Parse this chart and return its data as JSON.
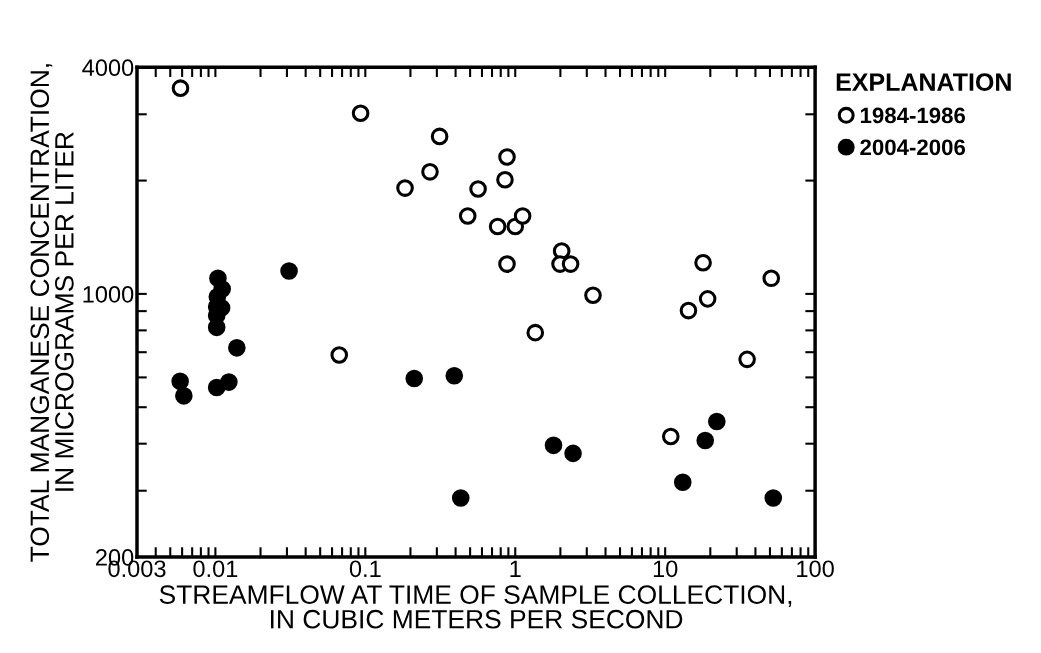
{
  "chart_data": {
    "type": "scatter",
    "xlabel": "STREAMFLOW AT TIME OF SAMPLE COLLECTION,\nIN CUBIC METERS PER SECOND",
    "ylabel": "TOTAL MANGANESE CONCENTRATION,\nIN MICROGRAMS PER LITER",
    "legend_title": "EXPLANATION",
    "legend": "top right",
    "log": "xy",
    "grid": false,
    "marker": "circle",
    "xlim": [
      0.003,
      100
    ],
    "ylim": [
      200,
      4000
    ],
    "xticks": [
      0.003,
      {
        "value": 0.004,
        "label": null
      },
      {
        "value": 0.005,
        "label": null
      },
      {
        "value": 0.006,
        "label": null
      },
      {
        "value": 0.007,
        "label": null
      },
      {
        "value": 0.008,
        "label": null
      },
      {
        "value": 0.009,
        "label": null
      },
      0.01,
      {
        "value": 0.02,
        "label": null
      },
      {
        "value": 0.03,
        "label": null
      },
      {
        "value": 0.04,
        "label": null
      },
      {
        "value": 0.05,
        "label": null
      },
      {
        "value": 0.06,
        "label": null
      },
      {
        "value": 0.07,
        "label": null
      },
      {
        "value": 0.08,
        "label": null
      },
      {
        "value": 0.09,
        "label": null
      },
      0.1,
      {
        "value": 0.2,
        "label": null
      },
      {
        "value": 0.3,
        "label": null
      },
      {
        "value": 0.4,
        "label": null
      },
      {
        "value": 0.5,
        "label": null
      },
      {
        "value": 0.6,
        "label": null
      },
      {
        "value": 0.7,
        "label": null
      },
      {
        "value": 0.8,
        "label": null
      },
      {
        "value": 0.9,
        "label": null
      },
      1,
      {
        "value": 2,
        "label": null
      },
      {
        "value": 3,
        "label": null
      },
      {
        "value": 4,
        "label": null
      },
      {
        "value": 5,
        "label": null
      },
      {
        "value": 6,
        "label": null
      },
      {
        "value": 7,
        "label": null
      },
      {
        "value": 8,
        "label": null
      },
      {
        "value": 9,
        "label": null
      },
      10,
      {
        "value": 20,
        "label": null
      },
      {
        "value": 30,
        "label": null
      },
      {
        "value": 40,
        "label": null
      },
      {
        "value": 50,
        "label": null
      },
      {
        "value": 60,
        "label": null
      },
      {
        "value": 70,
        "label": null
      },
      {
        "value": 80,
        "label": null
      },
      {
        "value": 90,
        "label": null
      },
      100
    ],
    "yticks": [
      200,
      {
        "value": 300,
        "label": null
      },
      {
        "value": 400,
        "label": null
      },
      {
        "value": 500,
        "label": null
      },
      {
        "value": 600,
        "label": null
      },
      {
        "value": 700,
        "label": null
      },
      {
        "value": 800,
        "label": null
      },
      {
        "value": 900,
        "label": null
      },
      1000,
      {
        "value": 2000,
        "label": null
      },
      {
        "value": 3000,
        "label": null
      },
      4000
    ],
    "series": [
      {
        "name": "1984-1986",
        "color": "#ffffff",
        "x": [
          0.00585,
          0.093,
          0.313,
          0.27,
          0.184,
          0.482,
          0.067,
          0.881,
          0.854,
          0.565,
          0.763,
          1.0,
          1.12,
          2.04,
          1.99,
          2.34,
          0.881,
          3.3,
          1.36,
          17.9,
          19.2,
          14.3,
          51,
          35.2,
          10.9
        ],
        "values": [
          3520,
          3020,
          2620,
          2110,
          1910,
          1610,
          688,
          2310,
          2010,
          1900,
          1510,
          1510,
          1610,
          1300,
          1200,
          1200,
          1200,
          992,
          789,
          1210,
          970,
          903,
          1100,
          670,
          418
        ]
      },
      {
        "name": "2004-2006",
        "color": "#000000",
        "x": [
          0.0104,
          0.0111,
          0.0103,
          0.011,
          0.0102,
          0.0102,
          0.0102,
          0.0139,
          0.00582,
          0.00616,
          0.0102,
          0.0123,
          0.031,
          0.212,
          0.392,
          0.433,
          1.8,
          2.43,
          13.1,
          18.5,
          22.1,
          52.6
        ],
        "values": [
          1100,
          1030,
          983,
          918,
          925,
          876,
          815,
          719,
          586,
          536,
          564,
          583,
          1150,
          596,
          606,
          287,
          396,
          377,
          316,
          408,
          458,
          287
        ]
      }
    ]
  }
}
